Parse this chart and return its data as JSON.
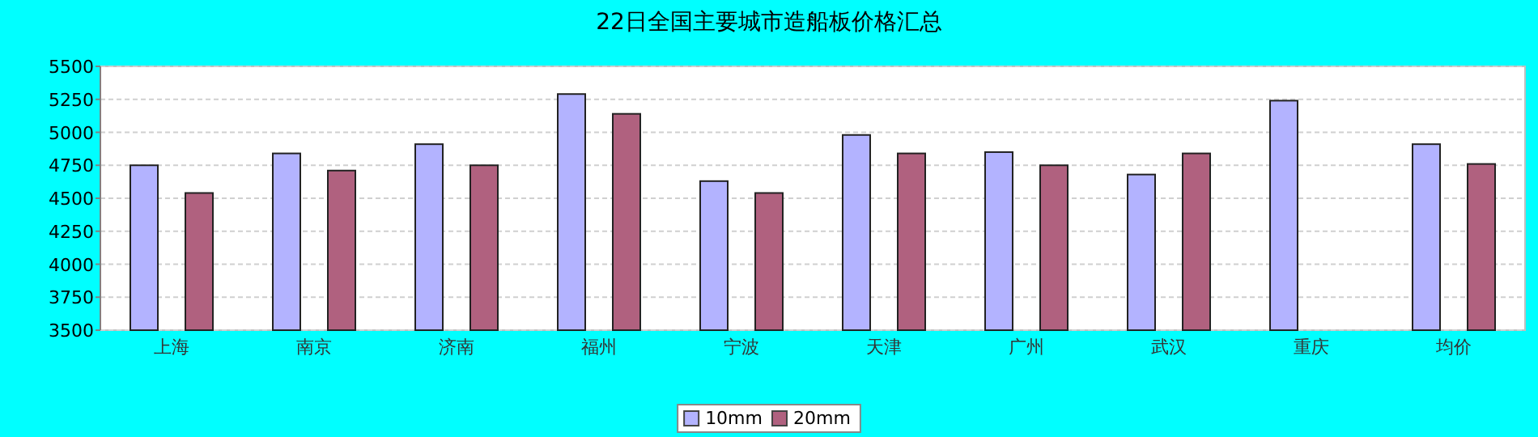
{
  "chart_data": {
    "type": "bar",
    "title": "22日全国主要城市造船板价格汇总",
    "categories": [
      "上海",
      "南京",
      "济南",
      "福州",
      "宁波",
      "天津",
      "广州",
      "武汉",
      "重庆",
      "均价"
    ],
    "series": [
      {
        "name": "10mm",
        "color": "#b3b3ff",
        "values": [
          4750,
          4840,
          4910,
          5290,
          4630,
          4980,
          4850,
          4680,
          5240,
          4910
        ]
      },
      {
        "name": "20mm",
        "color": "#b0617f",
        "values": [
          4540,
          4710,
          4750,
          5140,
          4540,
          4840,
          4750,
          4840,
          null,
          4760
        ]
      }
    ],
    "ylim": [
      3500,
      5500
    ],
    "yticks": [
      3500,
      3750,
      4000,
      4250,
      4500,
      4750,
      5000,
      5250,
      5500
    ],
    "grid": "y",
    "legend": "bottom"
  }
}
